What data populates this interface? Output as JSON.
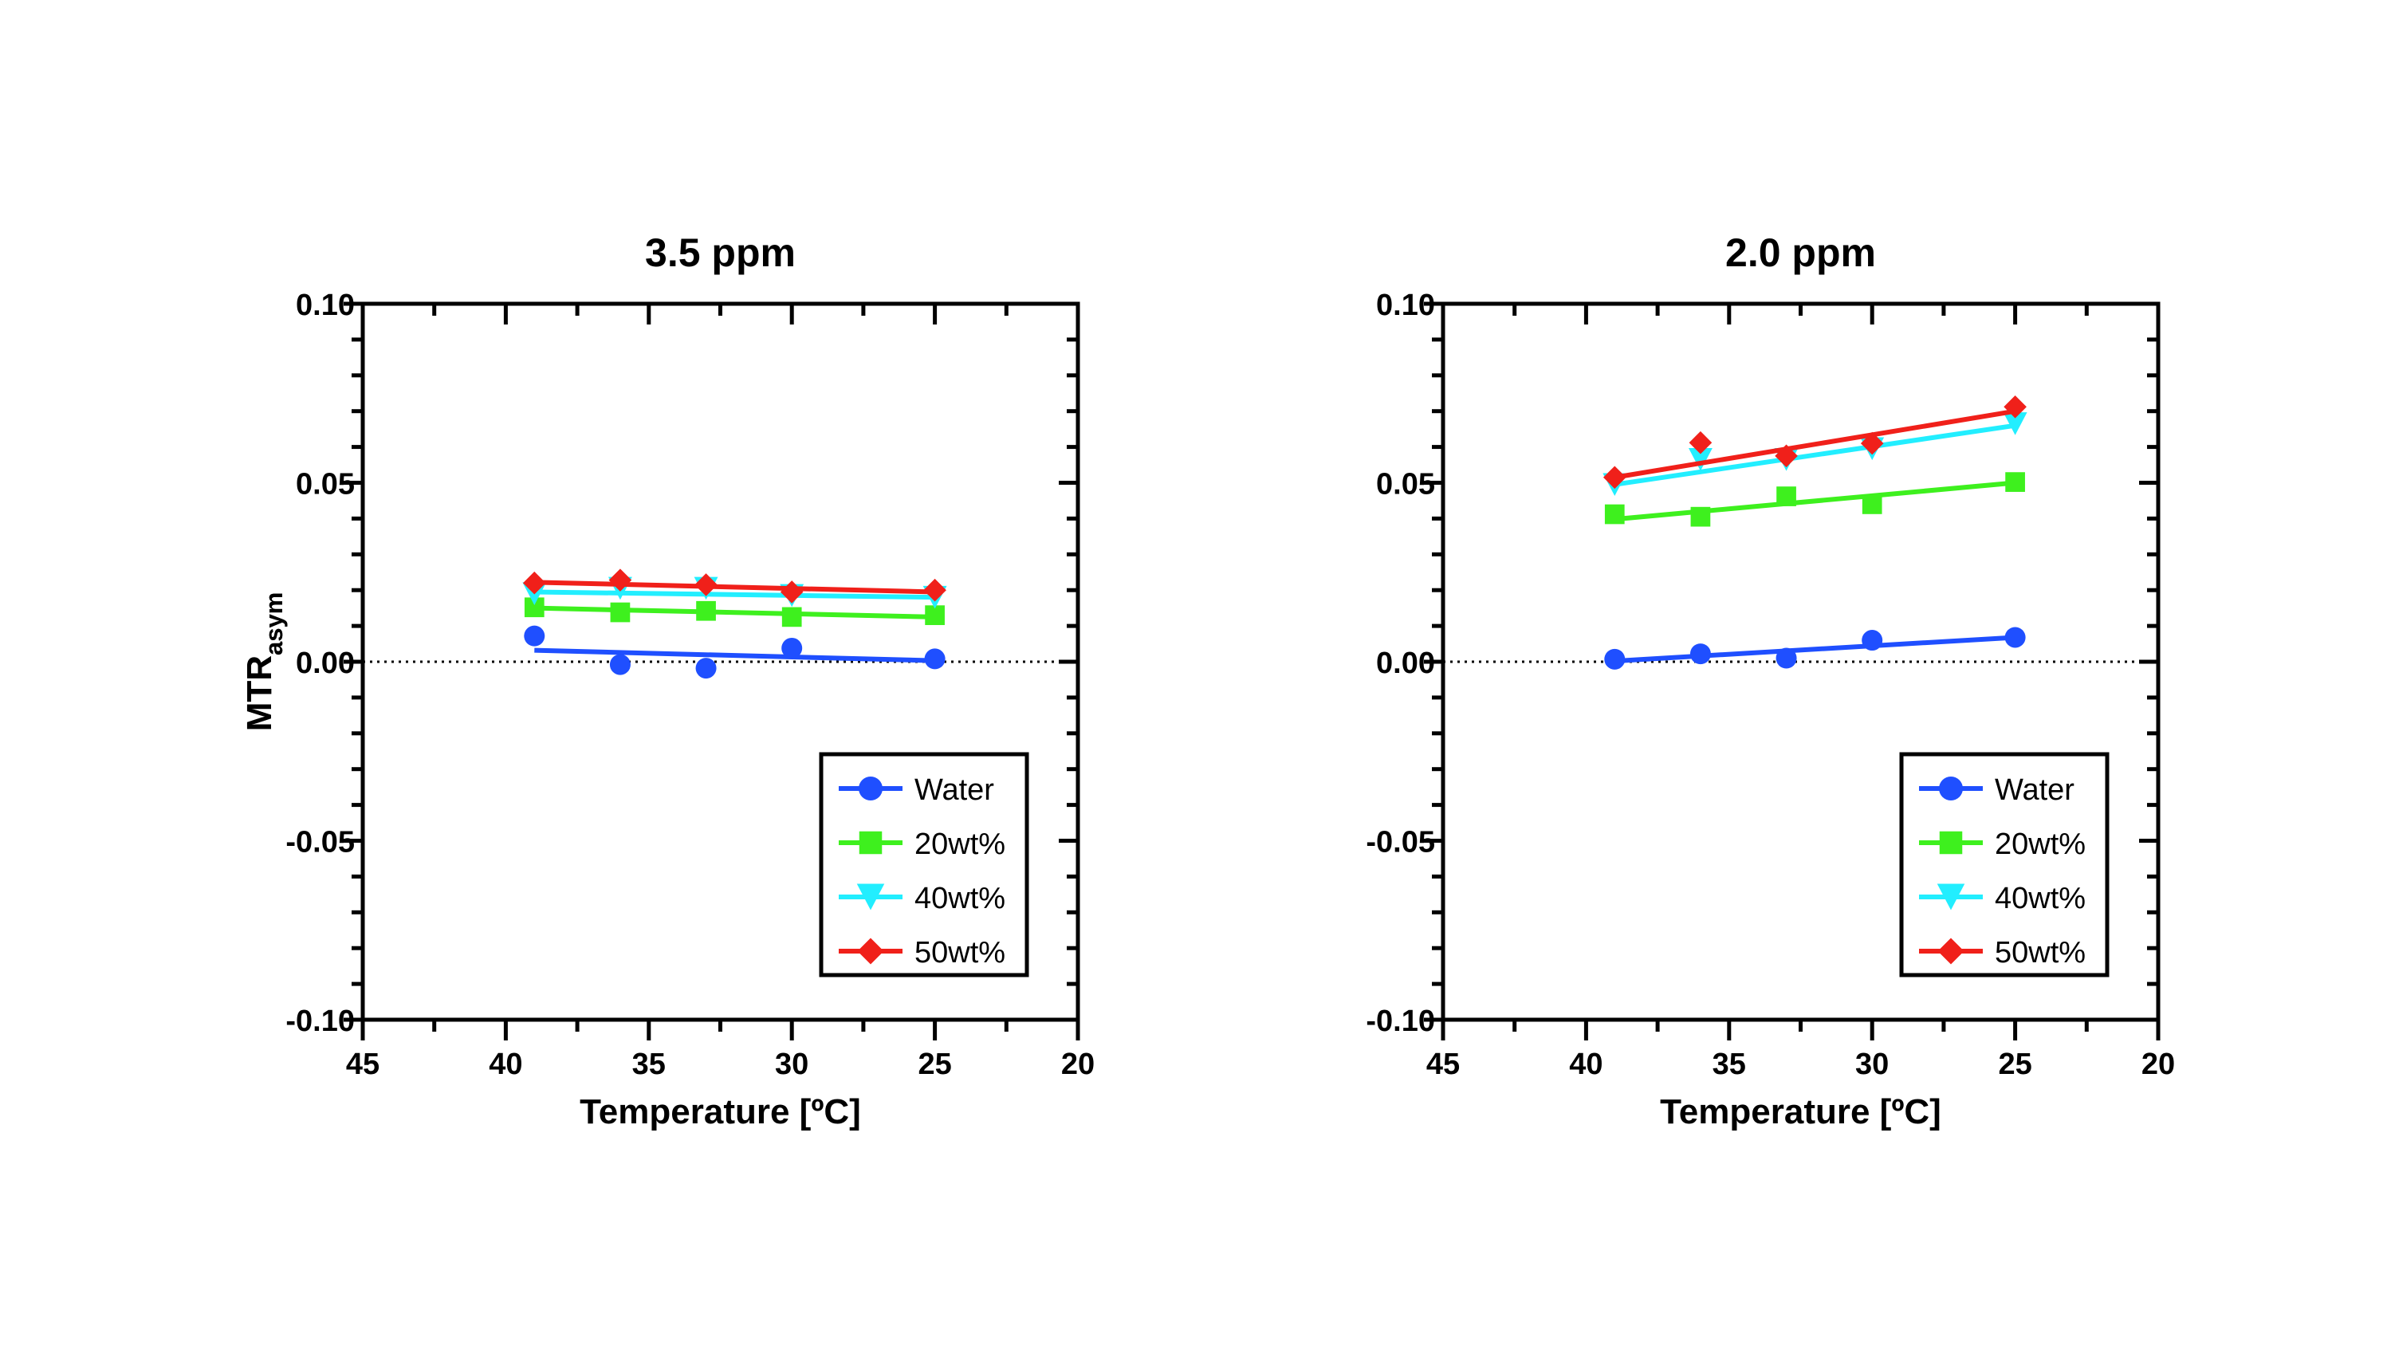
{
  "chart_data": [
    {
      "type": "scatter",
      "title": "3.5 ppm",
      "xlabel": "Temperature [ºC]",
      "ylabel_main": "MTR",
      "ylabel_sub": "asym",
      "xlim": [
        45,
        20
      ],
      "ylim": [
        -0.1,
        0.1
      ],
      "xticks": [
        45,
        40,
        35,
        30,
        25,
        20
      ],
      "yticks": [
        -0.1,
        -0.05,
        0.0,
        0.05,
        0.1
      ],
      "ytick_labels": [
        "-0.10",
        "-0.05",
        "0.00",
        "0.05",
        "0.10"
      ],
      "zero_line": true,
      "legend_position": "bottom-right",
      "series": [
        {
          "name": "Water",
          "color": "#1f4fff",
          "marker": "circle",
          "x": [
            39,
            36,
            33,
            30,
            25
          ],
          "y": [
            0.0072,
            -0.0008,
            -0.0018,
            0.0038,
            0.0008
          ],
          "fit": [
            [
              39,
              0.0032
            ],
            [
              25,
              0.0003
            ]
          ]
        },
        {
          "name": "20wt%",
          "color": "#3ef01e",
          "marker": "square",
          "x": [
            39,
            36,
            33,
            30,
            25
          ],
          "y": [
            0.0152,
            0.0138,
            0.0142,
            0.0125,
            0.013
          ],
          "fit": [
            [
              39,
              0.015
            ],
            [
              25,
              0.0125
            ]
          ]
        },
        {
          "name": "40wt%",
          "color": "#22eeff",
          "marker": "triangle-down",
          "x": [
            39,
            36,
            33,
            30,
            25
          ],
          "y": [
            0.019,
            0.0205,
            0.0205,
            0.0185,
            0.018
          ],
          "fit": [
            [
              39,
              0.0195
            ],
            [
              25,
              0.018
            ]
          ]
        },
        {
          "name": "50wt%",
          "color": "#f0201a",
          "marker": "diamond",
          "x": [
            39,
            36,
            33,
            30,
            25
          ],
          "y": [
            0.022,
            0.0228,
            0.0215,
            0.0195,
            0.02
          ],
          "fit": [
            [
              39,
              0.0222
            ],
            [
              25,
              0.0195
            ]
          ]
        }
      ]
    },
    {
      "type": "scatter",
      "title": "2.0 ppm",
      "xlabel": "Temperature [ºC]",
      "ylabel_main": "MTR",
      "ylabel_sub": "asym",
      "xlim": [
        45,
        20
      ],
      "ylim": [
        -0.1,
        0.1
      ],
      "xticks": [
        45,
        40,
        35,
        30,
        25,
        20
      ],
      "yticks": [
        -0.1,
        -0.05,
        0.0,
        0.05,
        0.1
      ],
      "ytick_labels": [
        "-0.10",
        "-0.05",
        "0.00",
        "0.05",
        "0.10"
      ],
      "zero_line": true,
      "legend_position": "bottom-right",
      "series": [
        {
          "name": "Water",
          "color": "#1f4fff",
          "marker": "circle",
          "x": [
            39,
            36,
            33,
            30,
            25
          ],
          "y": [
            0.0007,
            0.0022,
            0.001,
            0.006,
            0.0068
          ],
          "fit": [
            [
              39,
              0.0002
            ],
            [
              25,
              0.0068
            ]
          ]
        },
        {
          "name": "20wt%",
          "color": "#3ef01e",
          "marker": "square",
          "x": [
            39,
            36,
            33,
            30,
            25
          ],
          "y": [
            0.0412,
            0.0405,
            0.0462,
            0.044,
            0.0502
          ],
          "fit": [
            [
              39,
              0.0398
            ],
            [
              25,
              0.05
            ]
          ]
        },
        {
          "name": "40wt%",
          "color": "#22eeff",
          "marker": "triangle-down",
          "x": [
            39,
            36,
            33,
            30,
            25
          ],
          "y": [
            0.0495,
            0.0565,
            0.0565,
            0.0595,
            0.0665
          ],
          "fit": [
            [
              39,
              0.0495
            ],
            [
              25,
              0.066
            ]
          ]
        },
        {
          "name": "50wt%",
          "color": "#f0201a",
          "marker": "diamond",
          "x": [
            39,
            36,
            33,
            30,
            25
          ],
          "y": [
            0.0515,
            0.0612,
            0.0575,
            0.061,
            0.0712
          ],
          "fit": [
            [
              39,
              0.0515
            ],
            [
              25,
              0.07
            ]
          ]
        }
      ]
    }
  ]
}
